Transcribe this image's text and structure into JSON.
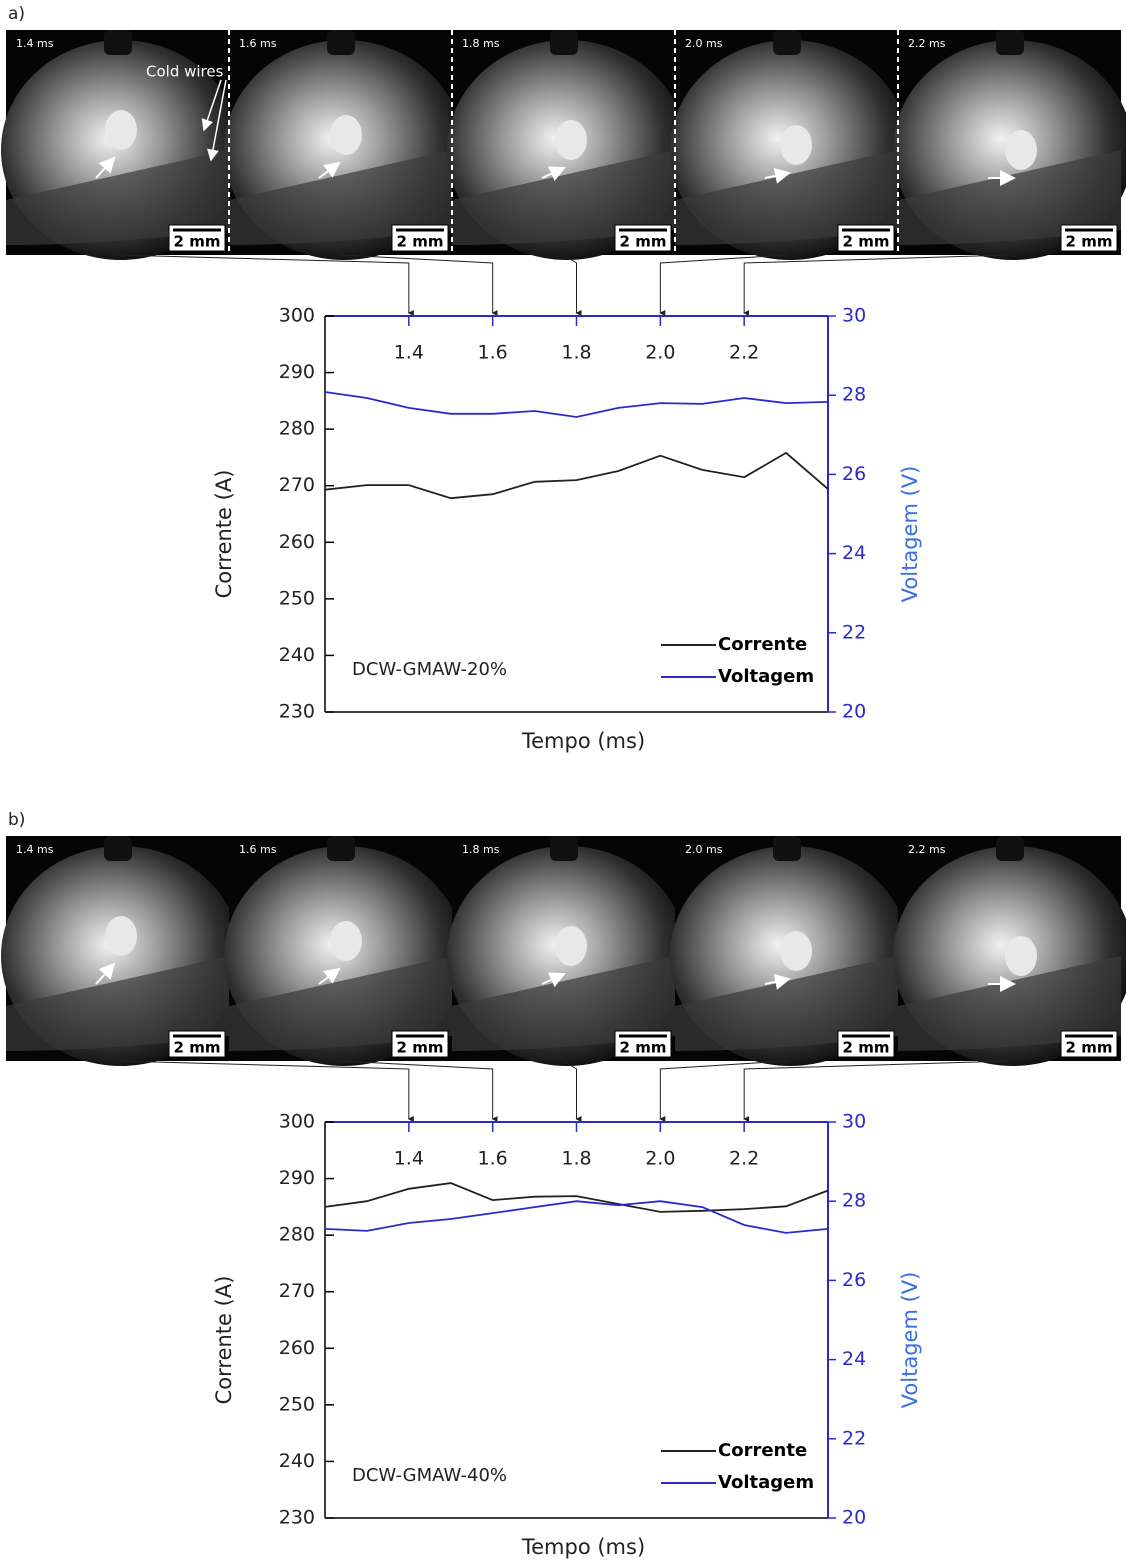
{
  "chart_data": [
    {
      "type": "line",
      "panel_label": "a)",
      "frame_annotation": "Cold wires",
      "frames": [
        {
          "time": "1.4 ms",
          "scale": "2 mm"
        },
        {
          "time": "1.6 ms",
          "scale": "2 mm"
        },
        {
          "time": "1.8 ms",
          "scale": "2 mm"
        },
        {
          "time": "2.0 ms",
          "scale": "2 mm"
        },
        {
          "time": "2.2 ms",
          "scale": "2 mm"
        }
      ],
      "frame_dividers": true,
      "x_label": "Tempo (ms)",
      "y_label": "Corrente (A)",
      "y2_label": "Voltagem (V)",
      "annotation": "DCW-GMAW-20%",
      "x": [
        1.2,
        1.3,
        1.4,
        1.5,
        1.6,
        1.7,
        1.8,
        1.9,
        2.0,
        2.1,
        2.2,
        2.3,
        2.4
      ],
      "xlim": [
        1.2,
        2.4
      ],
      "xticks": [
        1.4,
        1.6,
        1.8,
        {
          "value": 2,
          "label": "2.0"
        },
        2.2
      ],
      "ylim": [
        230,
        300
      ],
      "yticks": [
        230,
        240,
        250,
        260,
        270,
        280,
        290,
        300
      ],
      "y2lim": [
        20,
        30
      ],
      "y2ticks": [
        20,
        22,
        24,
        26,
        28,
        30
      ],
      "legend": "lower right",
      "series": [
        {
          "name": "Corrente",
          "color": "#222222",
          "values": [
            269.3,
            270.1,
            270.1,
            267.8,
            268.5,
            270.7,
            271,
            272.6,
            275.3,
            272.8,
            271.5,
            275.8,
            269.4
          ]
        },
        {
          "name": "Voltagem",
          "color": "#2a2acc",
          "axis": "y2",
          "values": [
            28.08,
            27.93,
            27.68,
            27.53,
            27.53,
            27.6,
            27.45,
            27.68,
            27.8,
            27.78,
            27.93,
            27.8,
            27.83
          ]
        }
      ]
    },
    {
      "type": "line",
      "panel_label": "b)",
      "frames": [
        {
          "time": "1.4 ms",
          "scale": "2 mm"
        },
        {
          "time": "1.6 ms",
          "scale": "2 mm"
        },
        {
          "time": "1.8 ms",
          "scale": "2 mm"
        },
        {
          "time": "2.0 ms",
          "scale": "2 mm"
        },
        {
          "time": "2.2 ms",
          "scale": "2 mm"
        }
      ],
      "frame_dividers": false,
      "x_label": "Tempo (ms)",
      "y_label": "Corrente (A)",
      "y2_label": "Voltagem (V)",
      "annotation": "DCW-GMAW-40%",
      "x": [
        1.2,
        1.3,
        1.4,
        1.5,
        1.6,
        1.7,
        1.8,
        1.9,
        2.0,
        2.1,
        2.2,
        2.3,
        2.4
      ],
      "xlim": [
        1.2,
        2.4
      ],
      "xticks": [
        1.4,
        1.6,
        1.8,
        {
          "value": 2,
          "label": "2.0"
        },
        2.2
      ],
      "ylim": [
        230,
        300
      ],
      "yticks": [
        230,
        240,
        250,
        260,
        270,
        280,
        290,
        300
      ],
      "y2lim": [
        20,
        30
      ],
      "y2ticks": [
        20,
        22,
        24,
        26,
        28,
        30
      ],
      "legend": "lower right",
      "series": [
        {
          "name": "Corrente",
          "color": "#222222",
          "values": [
            285,
            286,
            288.2,
            289.2,
            286.2,
            286.8,
            286.9,
            285.5,
            284.1,
            284.3,
            284.6,
            285.1,
            287.9
          ]
        },
        {
          "name": "Voltagem",
          "color": "#2a2acc",
          "axis": "y2",
          "values": [
            27.3,
            27.25,
            27.45,
            27.55,
            27.7,
            27.85,
            28,
            27.9,
            28,
            27.85,
            27.4,
            27.2,
            27.3
          ]
        }
      ]
    }
  ]
}
